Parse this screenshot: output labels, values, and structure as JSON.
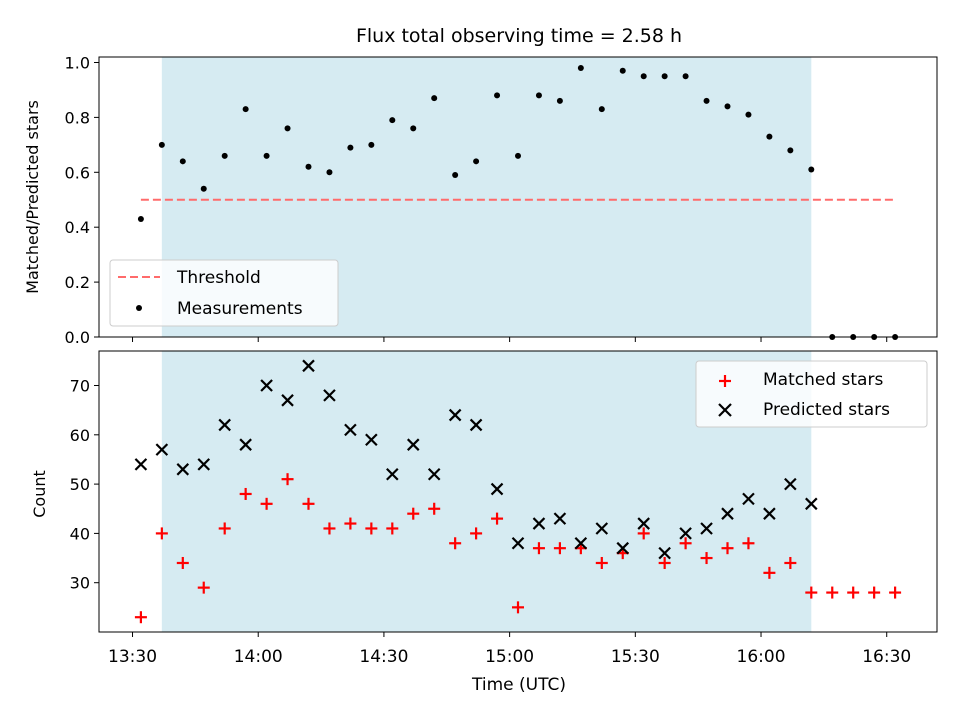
{
  "chart_data": [
    {
      "type": "scatter",
      "title": "Flux total observing time = 2.58 h",
      "xlabel": "",
      "ylabel": "Matched/Predicted stars",
      "xlim": [
        "13:22",
        "16:42"
      ],
      "ylim": [
        0,
        1.02
      ],
      "yticks": [
        0.0,
        0.2,
        0.4,
        0.6,
        0.8,
        1.0
      ],
      "ytick_labels": [
        "0.0",
        "0.2",
        "0.4",
        "0.6",
        "0.8",
        "1.0"
      ],
      "x_ticks": [
        "13:30",
        "14:00",
        "14:30",
        "15:00",
        "15:30",
        "16:00",
        "16:30"
      ],
      "x_tick_labels_shown": false,
      "highlight_span": {
        "x_start": "13:37",
        "x_end": "16:12",
        "color": "#add8e6"
      },
      "legend_position": "lower-left",
      "series": [
        {
          "name": "Threshold",
          "style": "dashed-line",
          "color": "#ff6b6b",
          "x": [
            "13:32",
            "16:32"
          ],
          "y": [
            0.5,
            0.5
          ]
        },
        {
          "name": "Measurements",
          "style": "dot",
          "color": "#000000",
          "x": [
            "13:32",
            "13:37",
            "13:42",
            "13:47",
            "13:52",
            "13:57",
            "14:02",
            "14:07",
            "14:12",
            "14:17",
            "14:22",
            "14:27",
            "14:32",
            "14:37",
            "14:42",
            "14:47",
            "14:52",
            "14:57",
            "15:02",
            "15:07",
            "15:12",
            "15:17",
            "15:22",
            "15:27",
            "15:32",
            "15:37",
            "15:42",
            "15:47",
            "15:52",
            "15:57",
            "16:02",
            "16:07",
            "16:12",
            "16:17",
            "16:22",
            "16:27",
            "16:32"
          ],
          "y": [
            0.43,
            0.7,
            0.64,
            0.54,
            0.66,
            0.83,
            0.66,
            0.76,
            0.62,
            0.6,
            0.69,
            0.7,
            0.79,
            0.76,
            0.87,
            0.59,
            0.64,
            0.88,
            0.66,
            0.88,
            0.86,
            0.98,
            0.83,
            0.97,
            0.95,
            0.95,
            0.95,
            0.86,
            0.84,
            0.81,
            0.73,
            0.68,
            0.61,
            0.0,
            0.0,
            0.0,
            0.0
          ]
        }
      ]
    },
    {
      "type": "scatter",
      "title": "",
      "xlabel": "Time (UTC)",
      "ylabel": "Count",
      "xlim": [
        "13:22",
        "16:42"
      ],
      "ylim": [
        20,
        77
      ],
      "yticks": [
        30,
        40,
        50,
        60,
        70
      ],
      "ytick_labels": [
        "30",
        "40",
        "50",
        "60",
        "70"
      ],
      "x_ticks": [
        "13:30",
        "14:00",
        "14:30",
        "15:00",
        "15:30",
        "16:00",
        "16:30"
      ],
      "x_tick_labels": [
        "13:30",
        "14:00",
        "14:30",
        "15:00",
        "15:30",
        "16:00",
        "16:30"
      ],
      "highlight_span": {
        "x_start": "13:37",
        "x_end": "16:12",
        "color": "#add8e6"
      },
      "legend_position": "upper-right",
      "series": [
        {
          "name": "Matched stars",
          "marker": "+",
          "color": "#ff0000",
          "x": [
            "13:32",
            "13:37",
            "13:42",
            "13:47",
            "13:52",
            "13:57",
            "14:02",
            "14:07",
            "14:12",
            "14:17",
            "14:22",
            "14:27",
            "14:32",
            "14:37",
            "14:42",
            "14:47",
            "14:52",
            "14:57",
            "15:02",
            "15:07",
            "15:12",
            "15:17",
            "15:22",
            "15:27",
            "15:32",
            "15:37",
            "15:42",
            "15:47",
            "15:52",
            "15:57",
            "16:02",
            "16:07",
            "16:12",
            "16:17",
            "16:22",
            "16:27",
            "16:32"
          ],
          "y": [
            23,
            40,
            34,
            29,
            41,
            48,
            46,
            51,
            46,
            41,
            42,
            41,
            41,
            44,
            45,
            38,
            40,
            43,
            25,
            37,
            37,
            37,
            34,
            36,
            40,
            34,
            38,
            35,
            37,
            38,
            32,
            34,
            28,
            28,
            28,
            28,
            28
          ]
        },
        {
          "name": "Predicted stars",
          "marker": "x",
          "color": "#000000",
          "x": [
            "13:32",
            "13:37",
            "13:42",
            "13:47",
            "13:52",
            "13:57",
            "14:02",
            "14:07",
            "14:12",
            "14:17",
            "14:22",
            "14:27",
            "14:32",
            "14:37",
            "14:42",
            "14:47",
            "14:52",
            "14:57",
            "15:02",
            "15:07",
            "15:12",
            "15:17",
            "15:22",
            "15:27",
            "15:32",
            "15:37",
            "15:42",
            "15:47",
            "15:52",
            "15:57",
            "16:02",
            "16:07",
            "16:12"
          ],
          "y": [
            54,
            57,
            53,
            54,
            62,
            58,
            70,
            67,
            74,
            68,
            61,
            59,
            52,
            58,
            52,
            64,
            62,
            49,
            38,
            42,
            43,
            38,
            41,
            37,
            42,
            36,
            40,
            41,
            44,
            47,
            44,
            50,
            46
          ]
        }
      ]
    }
  ]
}
